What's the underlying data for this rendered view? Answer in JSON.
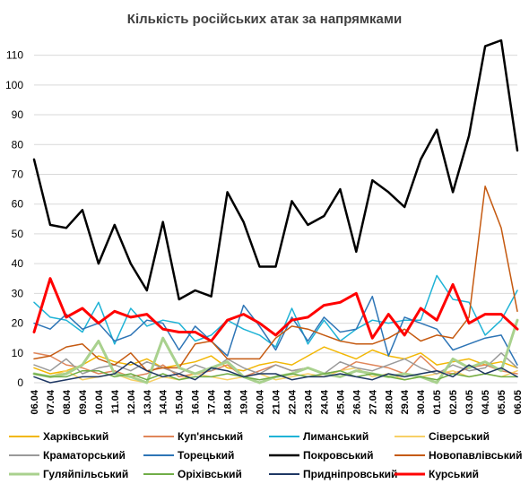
{
  "chart_data": {
    "type": "line",
    "title": "Кількість російських атак за напрямками",
    "xlabel": "",
    "ylabel": "",
    "ylim": [
      0,
      115
    ],
    "yticks": [
      0,
      10,
      20,
      30,
      40,
      50,
      60,
      70,
      80,
      90,
      100,
      110
    ],
    "grid": true,
    "legend_position": "bottom",
    "x": [
      "06.04",
      "07.04",
      "08.04",
      "09.04",
      "10.04",
      "11.04",
      "12.04",
      "13.04",
      "14.04",
      "15.04",
      "16.04",
      "17.04",
      "18.04",
      "19.04",
      "20.04",
      "21.04",
      "22.04",
      "23.04",
      "24.04",
      "25.04",
      "26.04",
      "27.04",
      "28.04",
      "29.04",
      "30.04",
      "01.05",
      "02.05",
      "03.05",
      "04.05",
      "05.05",
      "06.05"
    ],
    "series": [
      {
        "name": "Харківський",
        "color": "#f2b705",
        "width": 1.5,
        "values": [
          5,
          3,
          4,
          6,
          9,
          7,
          6,
          8,
          5,
          6,
          7,
          9,
          5,
          4,
          6,
          7,
          6,
          9,
          12,
          10,
          8,
          11,
          9,
          8,
          10,
          6,
          7,
          8,
          6,
          7,
          5
        ]
      },
      {
        "name": "Куп'янський",
        "color": "#e0865a",
        "width": 1.5,
        "values": [
          10,
          9,
          6,
          5,
          3,
          4,
          2,
          3,
          6,
          2,
          3,
          4,
          6,
          2,
          4,
          6,
          4,
          5,
          3,
          4,
          7,
          6,
          5,
          3,
          9,
          4,
          3,
          5,
          6,
          4,
          3
        ]
      },
      {
        "name": "Лиманський",
        "color": "#1fb3d6",
        "width": 1.5,
        "values": [
          27,
          22,
          21,
          17,
          27,
          13,
          25,
          19,
          21,
          20,
          14,
          16,
          21,
          18,
          16,
          12,
          25,
          13,
          21,
          14,
          18,
          21,
          20,
          21,
          21,
          36,
          28,
          27,
          16,
          21,
          31
        ]
      },
      {
        "name": "Сіверський",
        "color": "#f7d066",
        "width": 1.5,
        "values": [
          3,
          2,
          4,
          1,
          2,
          3,
          1,
          0,
          2,
          1,
          3,
          2,
          1,
          2,
          3,
          1,
          2,
          3,
          2,
          4,
          5,
          2,
          3,
          1,
          2,
          3,
          4,
          2,
          3,
          2,
          4
        ]
      },
      {
        "name": "Краматорський",
        "color": "#9a9a9a",
        "width": 1.5,
        "values": [
          6,
          4,
          8,
          3,
          5,
          6,
          4,
          7,
          5,
          3,
          6,
          4,
          8,
          5,
          3,
          6,
          4,
          5,
          3,
          7,
          5,
          4,
          6,
          8,
          5,
          3,
          6,
          4,
          5,
          10,
          5
        ]
      },
      {
        "name": "Торецький",
        "color": "#2e75b6",
        "width": 1.5,
        "values": [
          20,
          18,
          23,
          18,
          20,
          14,
          16,
          21,
          20,
          11,
          19,
          14,
          9,
          26,
          19,
          11,
          22,
          14,
          22,
          17,
          18,
          29,
          9,
          22,
          20,
          18,
          11,
          13,
          15,
          16,
          6
        ]
      },
      {
        "name": "Покровський",
        "color": "#000000",
        "width": 2.5,
        "values": [
          75,
          53,
          52,
          58,
          40,
          53,
          40,
          31,
          54,
          28,
          31,
          29,
          64,
          54,
          39,
          39,
          61,
          53,
          56,
          65,
          44,
          68,
          64,
          59,
          75,
          85,
          64,
          83,
          113,
          115,
          78
        ]
      },
      {
        "name": "Новопавлівський",
        "color": "#c55a11",
        "width": 1.5,
        "values": [
          8,
          9,
          12,
          13,
          8,
          6,
          10,
          4,
          5,
          5,
          13,
          14,
          8,
          8,
          8,
          15,
          19,
          18,
          16,
          14,
          13,
          13,
          15,
          18,
          14,
          16,
          15,
          22,
          66,
          52,
          24
        ]
      },
      {
        "name": "Гуляйпільський",
        "color": "#a9d18e",
        "width": 3,
        "values": [
          3,
          2,
          3,
          6,
          14,
          3,
          2,
          0,
          15,
          5,
          3,
          5,
          7,
          2,
          0,
          2,
          3,
          5,
          3,
          2,
          4,
          3,
          2,
          3,
          2,
          0,
          8,
          5,
          7,
          4,
          21
        ]
      },
      {
        "name": "Оріхівський",
        "color": "#70ad47",
        "width": 1.5,
        "values": [
          3,
          2,
          2,
          4,
          4,
          2,
          3,
          1,
          3,
          1,
          2,
          2,
          3,
          2,
          1,
          2,
          3,
          2,
          3,
          4,
          2,
          3,
          2,
          1,
          2,
          1,
          3,
          2,
          3,
          2,
          2
        ]
      },
      {
        "name": "Придніпровський",
        "color": "#1f3864",
        "width": 1.5,
        "values": [
          2,
          0,
          1,
          2,
          2,
          3,
          7,
          4,
          2,
          3,
          1,
          5,
          4,
          2,
          3,
          3,
          1,
          2,
          2,
          3,
          2,
          1,
          3,
          2,
          3,
          4,
          2,
          6,
          3,
          5,
          2
        ]
      },
      {
        "name": "Курський",
        "color": "#ff0000",
        "width": 3,
        "values": [
          17,
          35,
          22,
          25,
          20,
          24,
          22,
          23,
          18,
          17,
          17,
          14,
          21,
          23,
          20,
          16,
          21,
          22,
          26,
          27,
          30,
          15,
          23,
          16,
          25,
          21,
          33,
          20,
          23,
          23,
          18
        ]
      }
    ]
  }
}
